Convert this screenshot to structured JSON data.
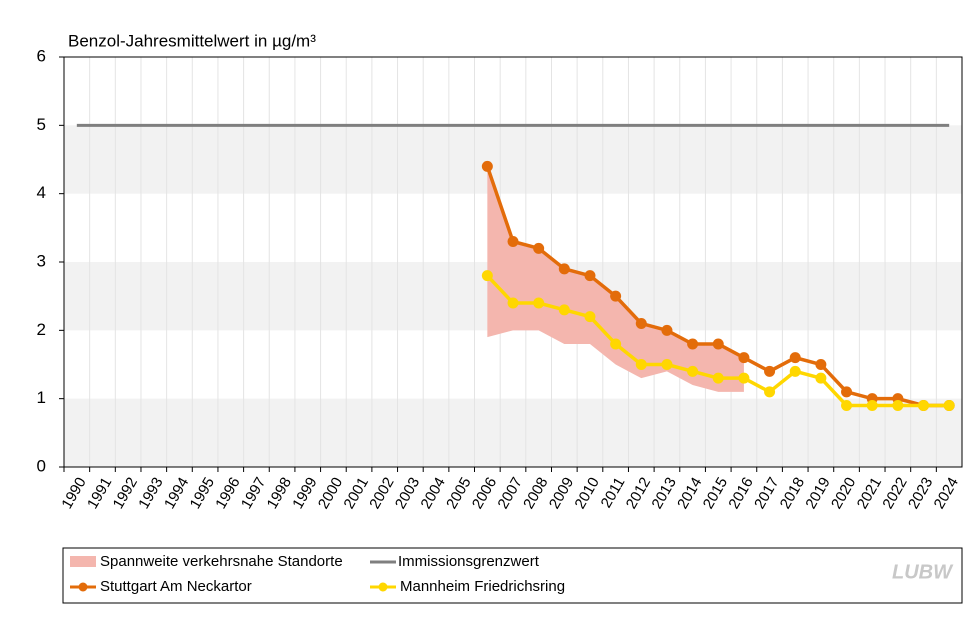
{
  "chart_data": {
    "type": "line",
    "title": "Benzol-Jahresmittelwert  in µg/m³",
    "categories": [
      "1990",
      "1991",
      "1992",
      "1993",
      "1994",
      "1995",
      "1996",
      "1997",
      "1998",
      "1999",
      "2000",
      "2001",
      "2002",
      "2003",
      "2004",
      "2005",
      "2006",
      "2007",
      "2008",
      "2009",
      "2010",
      "2011",
      "2012",
      "2013",
      "2014",
      "2015",
      "2016",
      "2017",
      "2018",
      "2019",
      "2020",
      "2021",
      "2022",
      "2023",
      "2024"
    ],
    "ylim": [
      0,
      6
    ],
    "yticks": [
      0,
      1,
      2,
      3,
      4,
      5,
      6
    ],
    "bands": [
      [
        0,
        1
      ],
      [
        2,
        3
      ],
      [
        4,
        5
      ]
    ],
    "range": {
      "name": "Spannweite verkehrsnahe Standorte",
      "color": "#f4b6ae",
      "high": [
        null,
        null,
        null,
        null,
        null,
        null,
        null,
        null,
        null,
        null,
        null,
        null,
        null,
        null,
        null,
        null,
        4.4,
        3.3,
        3.2,
        2.9,
        2.8,
        2.5,
        2.1,
        2.0,
        1.8,
        1.8,
        1.6,
        null,
        null,
        null,
        null,
        null,
        null,
        null,
        null
      ],
      "low": [
        null,
        null,
        null,
        null,
        null,
        null,
        null,
        null,
        null,
        null,
        null,
        null,
        null,
        null,
        null,
        null,
        1.9,
        2.0,
        2.0,
        1.8,
        1.8,
        1.5,
        1.3,
        1.4,
        1.2,
        1.1,
        1.1,
        null,
        null,
        null,
        null,
        null,
        null,
        null,
        null
      ]
    },
    "limit": {
      "name": "Immissionsgrenzwert",
      "color": "#7f7f7f",
      "value": 5
    },
    "series": [
      {
        "name": "Stuttgart Am Neckartor",
        "color": "#e36c0a",
        "values": [
          null,
          null,
          null,
          null,
          null,
          null,
          null,
          null,
          null,
          null,
          null,
          null,
          null,
          null,
          null,
          null,
          4.4,
          3.3,
          3.2,
          2.9,
          2.8,
          2.5,
          2.1,
          2.0,
          1.8,
          1.8,
          1.6,
          1.4,
          1.6,
          1.5,
          1.1,
          1.0,
          1.0,
          0.9,
          0.9
        ]
      },
      {
        "name": "Mannheim Friedrichsring",
        "color": "#ffd700",
        "values": [
          null,
          null,
          null,
          null,
          null,
          null,
          null,
          null,
          null,
          null,
          null,
          null,
          null,
          null,
          null,
          null,
          2.8,
          2.4,
          2.4,
          2.3,
          2.2,
          1.8,
          1.5,
          1.5,
          1.4,
          1.3,
          1.3,
          1.1,
          1.4,
          1.3,
          0.9,
          0.9,
          0.9,
          0.9,
          0.9
        ]
      }
    ],
    "logo": "LUBW"
  }
}
